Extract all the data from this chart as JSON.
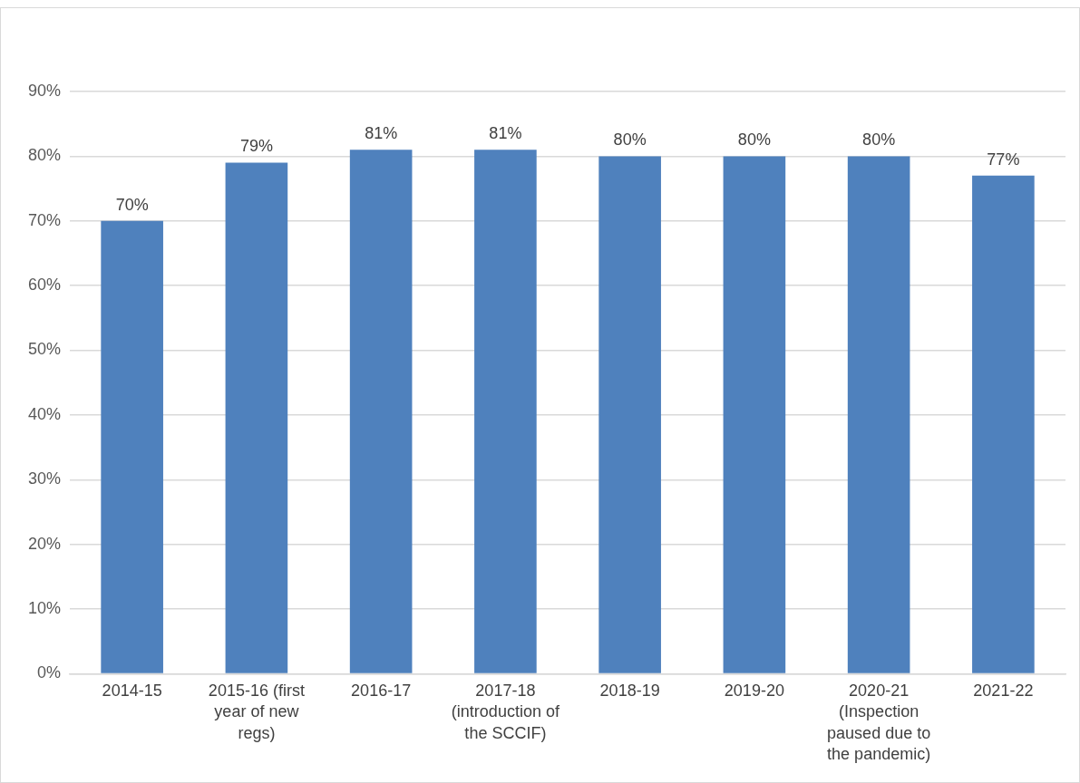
{
  "chart_data": {
    "type": "bar",
    "categories": [
      "2014-15",
      "2015-16 (first year of new regs)",
      "2016-17",
      "2017-18 (introduction of the SCCIF)",
      "2018-19",
      "2019-20",
      "2020-21 (Inspection paused due to the pandemic)",
      "2021-22"
    ],
    "values": [
      70,
      79,
      81,
      81,
      80,
      80,
      80,
      77
    ],
    "color": "#4f81bd",
    "value_labels": [
      "70%",
      "79%",
      "81%",
      "81%",
      "80%",
      "80%",
      "80%",
      "77%"
    ],
    "ylim": [
      0,
      90
    ],
    "yticks": [
      {
        "value": 0,
        "label": "0%"
      },
      {
        "value": 10,
        "label": "10%"
      },
      {
        "value": 20,
        "label": "20%"
      },
      {
        "value": 30,
        "label": "30%"
      },
      {
        "value": 40,
        "label": "40%"
      },
      {
        "value": 50,
        "label": "50%"
      },
      {
        "value": 60,
        "label": "60%"
      },
      {
        "value": 70,
        "label": "70%"
      },
      {
        "value": 80,
        "label": "80%"
      },
      {
        "value": 90,
        "label": "90%"
      }
    ],
    "grid": "y",
    "legend": false
  }
}
